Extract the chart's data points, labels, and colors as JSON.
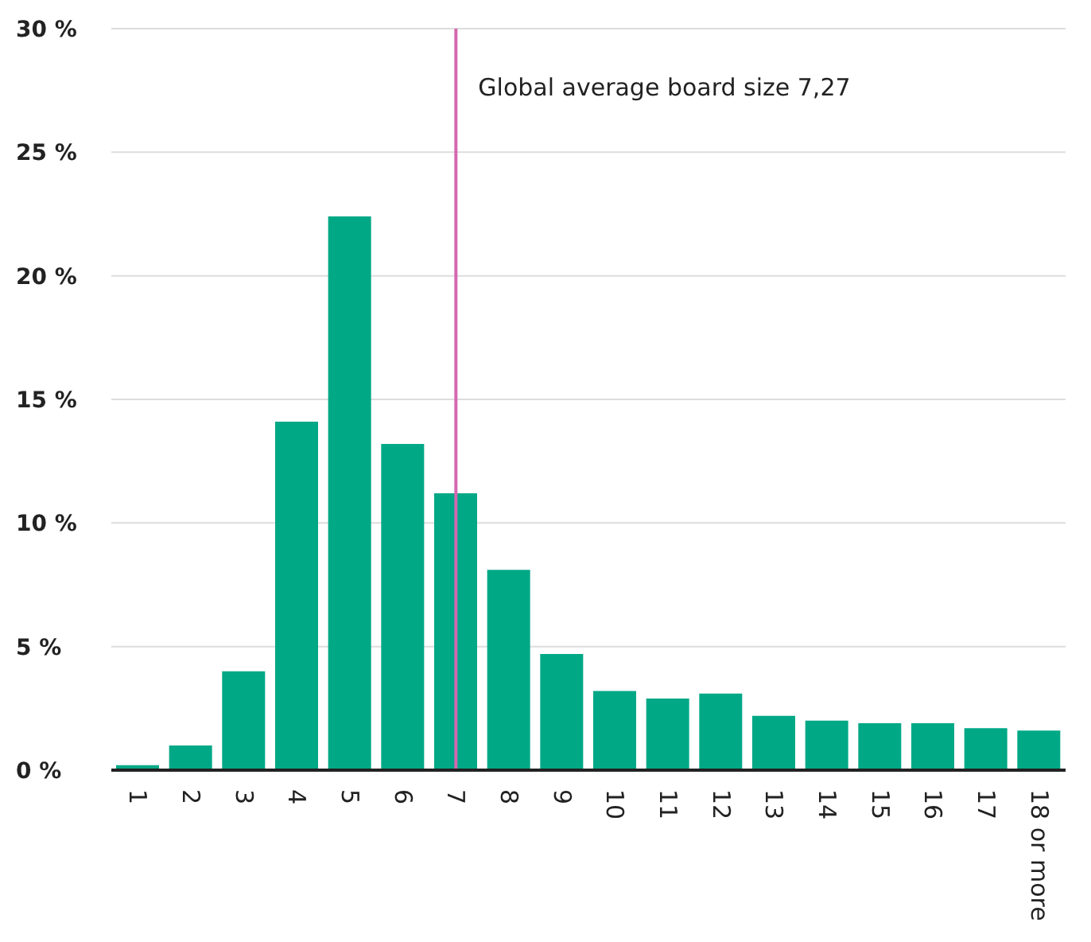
{
  "chart_data": {
    "type": "bar",
    "categories": [
      "1",
      "2",
      "3",
      "4",
      "5",
      "6",
      "7",
      "8",
      "9",
      "10",
      "11",
      "12",
      "13",
      "14",
      "15",
      "16",
      "17",
      "18 or more"
    ],
    "values": [
      0.2,
      1.0,
      4.0,
      14.1,
      22.4,
      13.2,
      11.2,
      8.1,
      4.7,
      3.2,
      2.9,
      3.1,
      2.2,
      2.0,
      1.9,
      1.9,
      1.7,
      1.6
    ],
    "color": "#00a886",
    "ylim": [
      0,
      30
    ],
    "yticks": [
      {
        "value": 0,
        "label": "0 %"
      },
      {
        "value": 5,
        "label": "5 %"
      },
      {
        "value": 10,
        "label": "10 %"
      },
      {
        "value": 15,
        "label": "15 %"
      },
      {
        "value": 20,
        "label": "20 %"
      },
      {
        "value": 25,
        "label": "25 %"
      },
      {
        "value": 30,
        "label": "30 %"
      }
    ],
    "grid": "y",
    "ref_lines": [
      {
        "axis": "x",
        "value": "7",
        "label": "Global average board size 7,27",
        "color": "#d667b0"
      }
    ]
  }
}
